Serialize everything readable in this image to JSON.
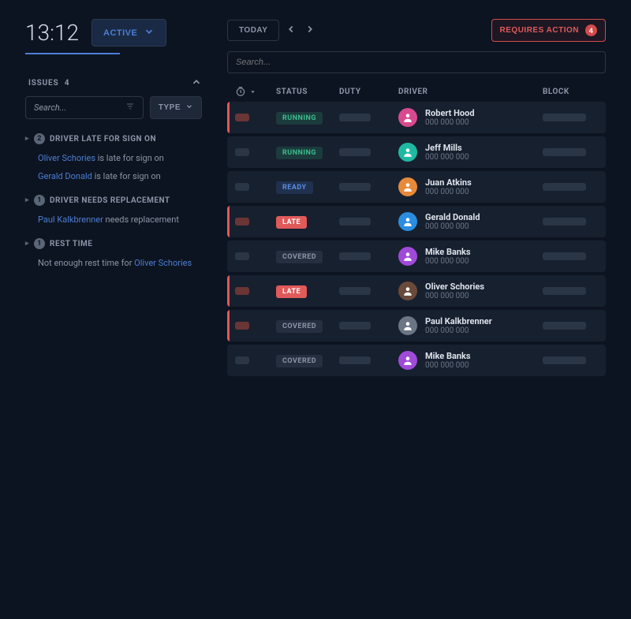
{
  "time": "13:12",
  "active_label": "ACTIVE",
  "issues": {
    "header": "ISSUES",
    "count": "4",
    "search_placeholder": "Search...",
    "type_label": "TYPE",
    "groups": [
      {
        "count": "2",
        "title": "DRIVER LATE FOR SIGN ON",
        "items": [
          {
            "name": "Oliver Schories",
            "suffix": " is late for sign on"
          },
          {
            "name": "Gerald Donald",
            "suffix": " is late for sign on"
          }
        ]
      },
      {
        "count": "1",
        "title": "DRIVER NEEDS REPLACEMENT",
        "items": [
          {
            "name": "Paul Kalkbrenner",
            "suffix": " needs replacement"
          }
        ]
      },
      {
        "count": "1",
        "title": "REST TIME",
        "items": [
          {
            "prefix": "Not enough rest time for ",
            "name": "Oliver Schories"
          }
        ]
      }
    ]
  },
  "topbar": {
    "today": "TODAY",
    "requires_action": "REQUIRES ACTION",
    "requires_count": "4",
    "search_placeholder": "Search..."
  },
  "columns": {
    "status": "STATUS",
    "duty": "DUTY",
    "driver": "DRIVER",
    "block": "BLOCK"
  },
  "status_labels": {
    "running": "RUNNING",
    "ready": "READY",
    "late": "LATE",
    "covered": "COVERED"
  },
  "avatar_colors": {
    "pink": "#d84a8f",
    "teal": "#1fb8a3",
    "orange": "#e68a3a",
    "blue": "#2a8de0",
    "purple": "#a04ad8",
    "brown": "#6a4a3a",
    "grey": "#6a7585"
  },
  "rows": [
    {
      "status": "running",
      "alert": true,
      "name": "Robert Hood",
      "phone": "000 000 000",
      "color": "pink"
    },
    {
      "status": "running",
      "alert": false,
      "name": "Jeff Mills",
      "phone": "000 000 000",
      "color": "teal"
    },
    {
      "status": "ready",
      "alert": false,
      "name": "Juan Atkins",
      "phone": "000 000 000",
      "color": "orange"
    },
    {
      "status": "late",
      "alert": true,
      "name": "Gerald Donald",
      "phone": "000 000 000",
      "color": "blue"
    },
    {
      "status": "covered",
      "alert": false,
      "name": "Mike Banks",
      "phone": "000 000 000",
      "color": "purple"
    },
    {
      "status": "late",
      "alert": true,
      "name": "Oliver Schories",
      "phone": "000 000 000",
      "color": "brown"
    },
    {
      "status": "covered",
      "alert": true,
      "name": "Paul Kalkbrenner",
      "phone": "000 000 000",
      "color": "grey"
    },
    {
      "status": "covered",
      "alert": false,
      "name": "Mike Banks",
      "phone": "000 000 000",
      "color": "purple"
    }
  ]
}
